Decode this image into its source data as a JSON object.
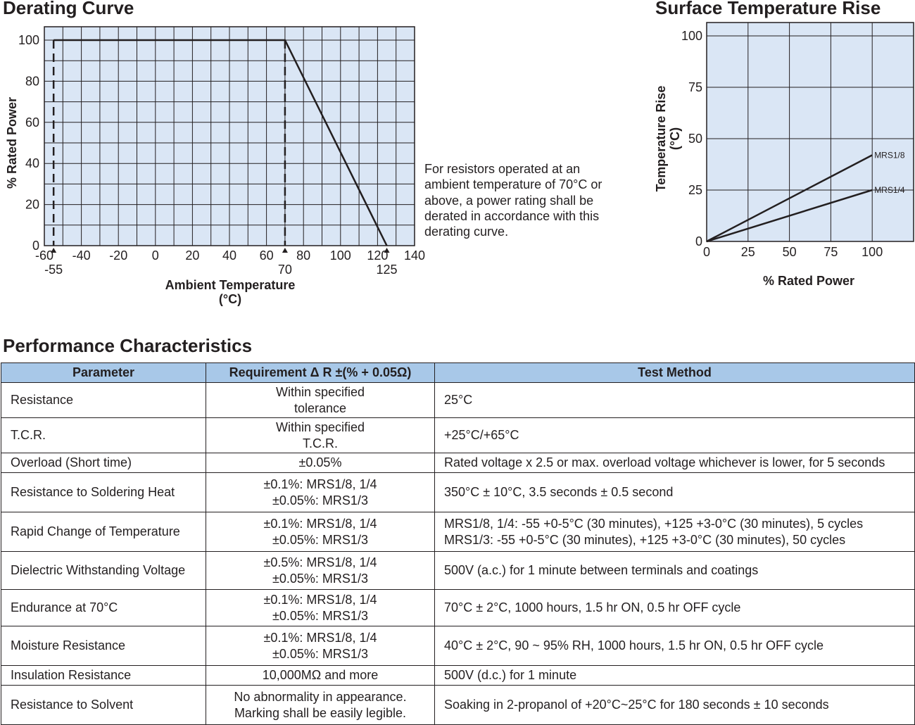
{
  "titles": {
    "derating": "Derating Curve",
    "surface": "Surface Temperature Rise",
    "performance": "Performance Characteristics"
  },
  "derating_note": "For resistors operated at an ambient temperature of 70°C or above, a power rating shall be derated in accordance with this derating curve.",
  "chart_data": [
    {
      "type": "line",
      "title": "Derating Curve",
      "xlabel": "Ambient Temperature (°C)",
      "ylabel": "% Rated Power",
      "xlim": [
        -60,
        140
      ],
      "ylim": [
        0,
        100
      ],
      "x_ticks": [
        -60,
        -40,
        -20,
        0,
        20,
        40,
        60,
        80,
        100,
        120,
        140
      ],
      "y_ticks": [
        0,
        20,
        40,
        60,
        80,
        100
      ],
      "grid": true,
      "series": [
        {
          "x": [
            -55,
            70,
            125
          ],
          "y": [
            100,
            100,
            0
          ]
        }
      ],
      "markers": [
        {
          "x": -55,
          "label": "-55",
          "dashed_line": true
        },
        {
          "x": 70,
          "label": "70",
          "dashed_line": true
        },
        {
          "x": 125,
          "label": "125",
          "dashed_line": false
        }
      ]
    },
    {
      "type": "line",
      "title": "Surface Temperature Rise",
      "xlabel": "% Rated Power",
      "ylabel": "Temperature Rise (°C)",
      "xlim": [
        0,
        125
      ],
      "ylim": [
        0,
        105
      ],
      "x_ticks": [
        0,
        25,
        50,
        75,
        100
      ],
      "y_ticks": [
        0,
        25,
        50,
        75,
        100
      ],
      "grid": true,
      "series": [
        {
          "name": "MRS1/8",
          "x": [
            0,
            100
          ],
          "y": [
            0,
            42
          ]
        },
        {
          "name": "MRS1/4",
          "x": [
            0,
            100
          ],
          "y": [
            0,
            25
          ]
        }
      ]
    }
  ],
  "table": {
    "headers": [
      "Parameter",
      "Requirement  Δ R ±(% + 0.05Ω)",
      "Test Method"
    ],
    "rows": [
      {
        "param": "Resistance",
        "req": [
          "Within specified",
          "tolerance"
        ],
        "method": [
          "25°C"
        ]
      },
      {
        "param": "T.C.R.",
        "req": [
          "Within specified",
          "T.C.R."
        ],
        "method": [
          "+25°C/+65°C"
        ]
      },
      {
        "param": "Overload (Short time)",
        "req": [
          "±0.05%"
        ],
        "method": [
          "Rated voltage x 2.5 or max. overload voltage whichever is lower, for 5 seconds"
        ]
      },
      {
        "param": "Resistance to Soldering Heat",
        "req": [
          "±0.1%: MRS1/8, 1/4",
          "±0.05%: MRS1/3"
        ],
        "method": [
          "350°C ± 10°C, 3.5 seconds ± 0.5 second"
        ]
      },
      {
        "param": "Rapid Change of Temperature",
        "req": [
          "±0.1%: MRS1/8, 1/4",
          "±0.05%: MRS1/3"
        ],
        "method": [
          "MRS1/8, 1/4: -55 +0-5°C (30 minutes), +125 +3-0°C (30 minutes), 5 cycles",
          "MRS1/3: -55 +0-5°C (30 minutes), +125 +3-0°C (30 minutes), 50 cycles"
        ]
      },
      {
        "param": "Dielectric Withstanding Voltage",
        "req": [
          "±0.5%: MRS1/8, 1/4",
          "±0.05%: MRS1/3"
        ],
        "method": [
          "500V (a.c.) for 1 minute between terminals and coatings"
        ]
      },
      {
        "param": "Endurance at 70°C",
        "req": [
          "±0.1%: MRS1/8, 1/4",
          "±0.05%: MRS1/3"
        ],
        "method": [
          "70°C ± 2°C, 1000 hours, 1.5 hr ON, 0.5 hr OFF cycle"
        ]
      },
      {
        "param": "Moisture Resistance",
        "req": [
          "±0.1%: MRS1/8, 1/4",
          "±0.05%: MRS1/3"
        ],
        "method": [
          "40°C ± 2°C, 90 ~ 95% RH, 1000 hours, 1.5 hr ON, 0.5 hr OFF cycle"
        ]
      },
      {
        "param": "Insulation Resistance",
        "req": [
          "10,000MΩ and more"
        ],
        "method": [
          "500V (d.c.) for 1 minute"
        ]
      },
      {
        "param": "Resistance to Solvent",
        "req": [
          "No abnormality in appearance.",
          "Marking shall be easily legible."
        ],
        "method": [
          "Soaking in 2-propanol of +20°C~25°C for 180 seconds ± 10 seconds"
        ]
      }
    ]
  },
  "colors": {
    "plot_bg": "#dae6f5",
    "header_bg": "#a8c8e8",
    "ink": "#231f20"
  }
}
